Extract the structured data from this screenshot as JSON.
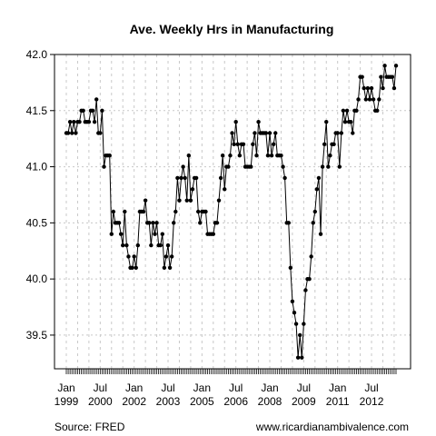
{
  "chart_data": {
    "type": "line",
    "title": "Ave. Weekly Hrs in Manufacturing",
    "xlabel": "",
    "ylabel": "",
    "ylim": [
      39.2,
      42.0
    ],
    "yticks": [
      "39.5",
      "40.0",
      "40.5",
      "41.0",
      "41.5",
      "42.0"
    ],
    "grid": true,
    "x_start": "Jan 1999",
    "x_end": "Mar 2013",
    "xtick_labels": [
      {
        "month": "Jan",
        "year": "1999"
      },
      {
        "month": "Jul",
        "year": "2000"
      },
      {
        "month": "Jan",
        "year": "2002"
      },
      {
        "month": "Jul",
        "year": "2003"
      },
      {
        "month": "Jan",
        "year": "2005"
      },
      {
        "month": "Jul",
        "year": "2006"
      },
      {
        "month": "Jan",
        "year": "2008"
      },
      {
        "month": "Jul",
        "year": "2009"
      },
      {
        "month": "Jan",
        "year": "2011"
      },
      {
        "month": "Jul",
        "year": "2012"
      }
    ],
    "series": [
      {
        "values": [
          41.3,
          41.3,
          41.4,
          41.3,
          41.4,
          41.3,
          41.4,
          41.4,
          41.5,
          41.5,
          41.4,
          41.4,
          41.4,
          41.5,
          41.5,
          41.4,
          41.6,
          41.3,
          41.3,
          41.5,
          41.0,
          41.1,
          41.1,
          41.1,
          40.4,
          40.6,
          40.5,
          40.5,
          40.5,
          40.4,
          40.3,
          40.6,
          40.3,
          40.2,
          40.1,
          40.1,
          40.2,
          40.1,
          40.3,
          40.6,
          40.6,
          40.6,
          40.7,
          40.5,
          40.5,
          40.3,
          40.5,
          40.4,
          40.5,
          40.3,
          40.3,
          40.4,
          40.1,
          40.2,
          40.3,
          40.1,
          40.2,
          40.5,
          40.6,
          40.9,
          40.7,
          40.9,
          41.0,
          40.9,
          40.7,
          41.1,
          40.7,
          40.8,
          40.9,
          40.9,
          40.6,
          40.5,
          40.6,
          40.6,
          40.6,
          40.4,
          40.4,
          40.4,
          40.4,
          40.5,
          40.5,
          40.7,
          40.9,
          41.1,
          40.8,
          41.0,
          41.0,
          41.1,
          41.3,
          41.2,
          41.4,
          41.2,
          41.1,
          41.2,
          41.2,
          41.0,
          41.0,
          41.0,
          41.0,
          41.2,
          41.3,
          41.1,
          41.4,
          41.3,
          41.3,
          41.3,
          41.3,
          41.1,
          41.3,
          41.1,
          41.2,
          41.3,
          41.1,
          41.1,
          41.1,
          41.0,
          40.9,
          40.5,
          40.5,
          40.1,
          39.8,
          39.7,
          39.6,
          39.3,
          39.5,
          39.3,
          39.6,
          39.9,
          40.0,
          40.0,
          40.2,
          40.5,
          40.6,
          40.8,
          40.9,
          40.4,
          41.0,
          41.2,
          41.4,
          41.0,
          41.1,
          41.2,
          41.2,
          41.3,
          41.3,
          41.0,
          41.3,
          41.5,
          41.4,
          41.5,
          41.4,
          41.4,
          41.3,
          41.5,
          41.5,
          41.6,
          41.8,
          41.8,
          41.7,
          41.6,
          41.7,
          41.6,
          41.7,
          41.6,
          41.5,
          41.5,
          41.6,
          41.8,
          41.7,
          41.9,
          41.8,
          41.8,
          41.8,
          41.8,
          41.7,
          41.9
        ]
      }
    ]
  },
  "footer": {
    "source": "Source: FRED",
    "website": "www.ricardianambivalence.com"
  }
}
